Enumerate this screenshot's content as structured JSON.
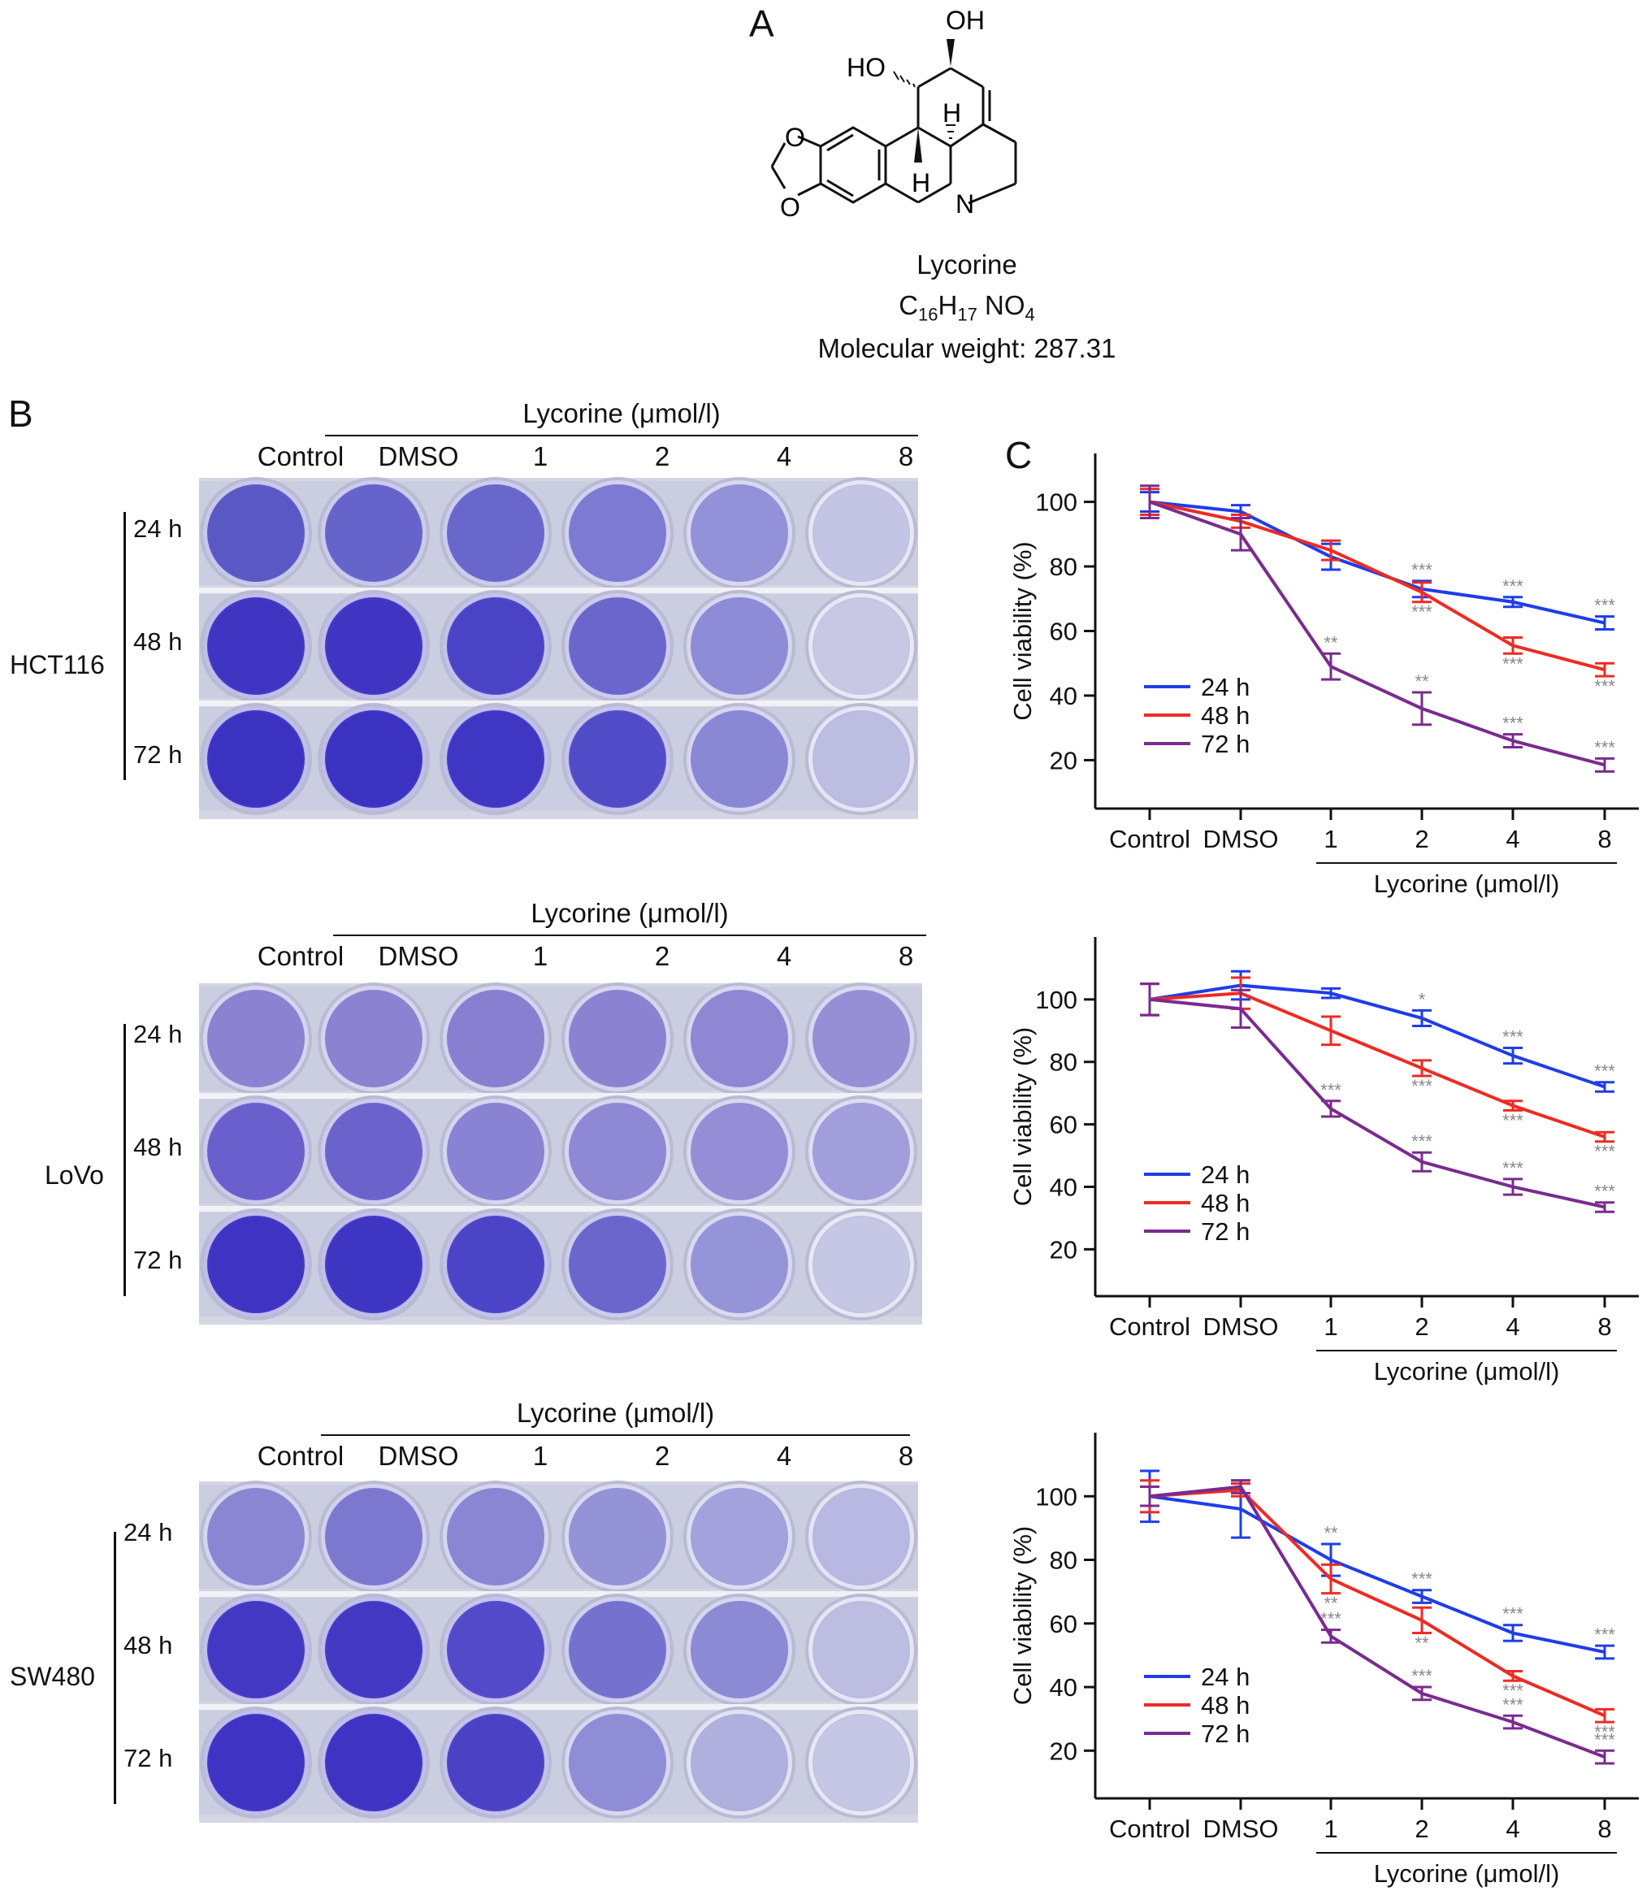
{
  "panel_labels": {
    "a": "A",
    "b": "B",
    "c": "C"
  },
  "structure": {
    "name": "Lycorine",
    "formula_parts": [
      "C",
      "16",
      "H",
      "17",
      " NO",
      "4"
    ],
    "molecular_weight": "Molecular weight: 287.31",
    "atom_labels": {
      "oh": "OH",
      "ho": "HO",
      "h_top": "H",
      "h_bottom": "H",
      "n": "N",
      "o1": "O",
      "o2": "O"
    }
  },
  "plates": [
    {
      "cell_line": "HCT116",
      "group_header": "Lycorine (μmol/l)",
      "column_labels": [
        "Control",
        "DMSO",
        "1",
        "2",
        "4",
        "8"
      ],
      "time_labels": [
        "24 h",
        "48 h",
        "72 h"
      ],
      "well_colors": [
        [
          "#5a58c4",
          "#6664cb",
          "#6967cc",
          "#7c7ad2",
          "#9392d8",
          "#c4c4e4"
        ],
        [
          "#3f35c2",
          "#4035c3",
          "#4b43c6",
          "#6a66cc",
          "#8e8cd6",
          "#c8c8e5"
        ],
        [
          "#3b32c2",
          "#3b32c2",
          "#3f37c4",
          "#524bc8",
          "#8a88d5",
          "#bdbde2"
        ]
      ]
    },
    {
      "cell_line": "LoVo",
      "group_header": "Lycorine (μmol/l)",
      "column_labels": [
        "Control",
        "DMSO",
        "1",
        "2",
        "4",
        "8"
      ],
      "time_labels": [
        "24 h",
        "48 h",
        "72 h"
      ],
      "well_colors": [
        [
          "#8c82d2",
          "#8c82d2",
          "#887fd0",
          "#8b83d2",
          "#8f87d3",
          "#968fd5"
        ],
        [
          "#6a5fcc",
          "#6c62cc",
          "#8a82d2",
          "#8f88d4",
          "#958ed6",
          "#a29ddb"
        ],
        [
          "#3e33c3",
          "#3f35c3",
          "#4b44c6",
          "#6a66cc",
          "#9694d8",
          "#c6c6e5"
        ]
      ]
    },
    {
      "cell_line": "SW480",
      "group_header": "Lycorine (μmol/l)",
      "column_labels": [
        "Control",
        "DMSO",
        "1",
        "2",
        "4",
        "8"
      ],
      "time_labels": [
        "24 h",
        "48 h",
        "72 h"
      ],
      "well_colors": [
        [
          "#8a86d3",
          "#7d78cf",
          "#8a86d3",
          "#9593d7",
          "#a3a2dc",
          "#b8b8e2"
        ],
        [
          "#4338c4",
          "#4338c4",
          "#524ac8",
          "#7572cf",
          "#8c8ad5",
          "#bdbde2"
        ],
        [
          "#3e33c3",
          "#3e33c3",
          "#4a41c5",
          "#8f8dd6",
          "#b0b0de",
          "#c6c6e5"
        ]
      ]
    }
  ],
  "colors": {
    "h24": "#1f3de8",
    "h48": "#ee2b23",
    "h72": "#7a2b8e",
    "stars": "#888888"
  },
  "chart_data": [
    {
      "type": "line",
      "ylabel": "Cell viability (%)",
      "xlabel": "Lycorine (μmol/l)",
      "categories": [
        "Control",
        "DMSO",
        "1",
        "2",
        "4",
        "8"
      ],
      "yticks": [
        20,
        40,
        60,
        80,
        100
      ],
      "ylim": [
        5,
        115
      ],
      "grid": false,
      "legend_position": "bottom-left",
      "series": [
        {
          "name": "24 h",
          "color_key": "h24",
          "values": [
            100,
            97,
            83,
            73,
            69,
            62.5
          ],
          "errors": [
            3,
            2,
            4,
            2.5,
            1.5,
            2
          ],
          "stars": [
            "",
            "",
            "",
            "***",
            "***",
            "***"
          ]
        },
        {
          "name": "48 h",
          "color_key": "h48",
          "values": [
            100,
            94,
            85,
            72,
            55.5,
            48
          ],
          "errors": [
            4,
            2,
            3,
            3,
            2.5,
            2
          ],
          "stars": [
            "",
            "",
            "",
            "***",
            "***",
            "***"
          ]
        },
        {
          "name": "72 h",
          "color_key": "h72",
          "values": [
            100,
            90,
            49,
            36,
            26,
            18.5
          ],
          "errors": [
            5,
            5,
            4,
            5,
            2,
            2
          ],
          "stars": [
            "",
            "",
            "**",
            "**",
            "***",
            "***"
          ]
        }
      ]
    },
    {
      "type": "line",
      "ylabel": "Cell viability (%)",
      "xlabel": "Lycorine (μmol/l)",
      "categories": [
        "Control",
        "DMSO",
        "1",
        "2",
        "4",
        "8"
      ],
      "yticks": [
        20,
        40,
        60,
        80,
        100
      ],
      "ylim": [
        5,
        120
      ],
      "grid": false,
      "legend_position": "bottom-left",
      "series": [
        {
          "name": "24 h",
          "color_key": "h24",
          "values": [
            100,
            104.5,
            102,
            94,
            82,
            72
          ],
          "errors": [
            5,
            4.5,
            1.5,
            2.5,
            2.5,
            1.5
          ],
          "stars": [
            "",
            "",
            "",
            "*",
            "***",
            "***"
          ]
        },
        {
          "name": "48 h",
          "color_key": "h48",
          "values": [
            100,
            102,
            90,
            78,
            66,
            56
          ],
          "errors": [
            5,
            5,
            4.5,
            2.5,
            1.5,
            1.5
          ],
          "stars": [
            "",
            "",
            "",
            "***",
            "***",
            "***"
          ]
        },
        {
          "name": "72 h",
          "color_key": "h72",
          "values": [
            100,
            97,
            65,
            48,
            40,
            33.5
          ],
          "errors": [
            5,
            6,
            2.5,
            3,
            2.5,
            1.5
          ],
          "stars": [
            "",
            "",
            "***",
            "***",
            "***",
            "***"
          ]
        }
      ]
    },
    {
      "type": "line",
      "ylabel": "Cell viability (%)",
      "xlabel": "Lycorine (μmol/l)",
      "categories": [
        "Control",
        "DMSO",
        "1",
        "2",
        "4",
        "8"
      ],
      "yticks": [
        20,
        40,
        60,
        80,
        100
      ],
      "ylim": [
        5,
        120
      ],
      "grid": false,
      "legend_position": "bottom-left",
      "series": [
        {
          "name": "24 h",
          "color_key": "h24",
          "values": [
            100,
            96,
            80,
            68.5,
            57,
            51
          ],
          "errors": [
            8,
            9,
            5,
            2,
            2.5,
            2
          ],
          "stars": [
            "",
            "",
            "**",
            "***",
            "***",
            "***"
          ]
        },
        {
          "name": "48 h",
          "color_key": "h48",
          "values": [
            100,
            102,
            74,
            61,
            43.5,
            31
          ],
          "errors": [
            5,
            2,
            4.5,
            4,
            1.5,
            2
          ],
          "stars": [
            "",
            "",
            "**",
            "**",
            "***",
            "***"
          ]
        },
        {
          "name": "72 h",
          "color_key": "h72",
          "values": [
            100,
            103,
            56,
            38,
            29,
            18
          ],
          "errors": [
            3,
            2,
            2,
            2,
            2,
            2
          ],
          "stars": [
            "",
            "",
            "***",
            "***",
            "***",
            "***"
          ]
        }
      ]
    }
  ]
}
